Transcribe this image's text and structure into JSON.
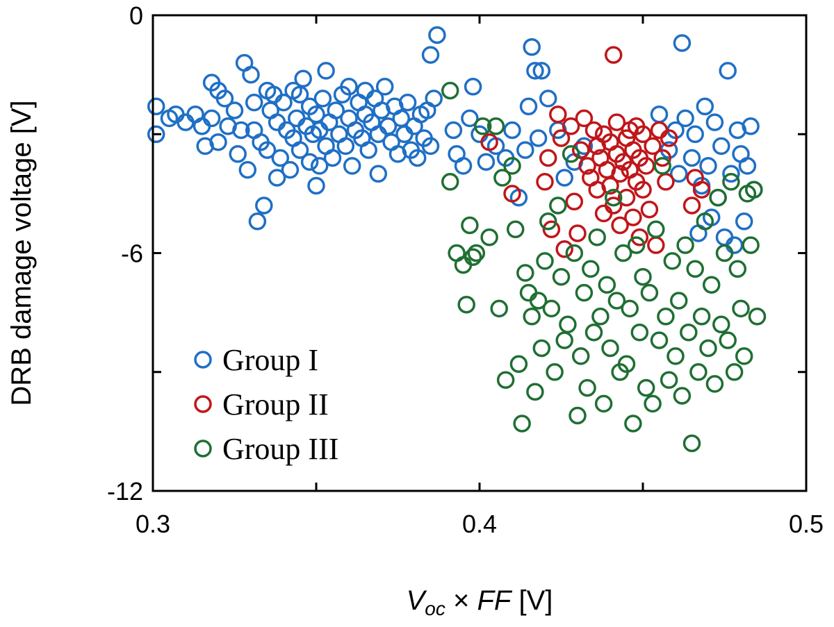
{
  "chart_data": {
    "type": "scatter",
    "title": "",
    "xlabel": {
      "parts": [
        {
          "text": "V",
          "italic": true
        },
        {
          "text": "oc",
          "italic": true,
          "sub": true
        },
        {
          "text": " × ",
          "italic": false
        },
        {
          "text": "FF",
          "italic": true
        },
        {
          "text": " [V]",
          "italic": false
        }
      ]
    },
    "ylabel": "DRB damage voltage [V]",
    "xlim": [
      0.3,
      0.5
    ],
    "ylim": [
      -12,
      0
    ],
    "xticks": [
      0.3,
      0.4,
      0.5
    ],
    "xtick_labels": [
      "0.3",
      "0.4",
      "0.5"
    ],
    "yticks": [
      0,
      -3,
      -6,
      -9,
      -12
    ],
    "ytick_labels": [
      "0",
      "",
      "-6",
      "",
      "-12"
    ],
    "grid": false,
    "legend_position": "bottom-left",
    "series": [
      {
        "name": "Group I",
        "color": "#1f6fc5",
        "points": [
          [
            0.301,
            -2.3
          ],
          [
            0.301,
            -3.0
          ],
          [
            0.305,
            -2.6
          ],
          [
            0.307,
            -2.5
          ],
          [
            0.31,
            -2.7
          ],
          [
            0.313,
            -2.5
          ],
          [
            0.315,
            -2.8
          ],
          [
            0.316,
            -3.3
          ],
          [
            0.318,
            -1.7
          ],
          [
            0.318,
            -2.6
          ],
          [
            0.32,
            -1.9
          ],
          [
            0.32,
            -3.2
          ],
          [
            0.322,
            -2.1
          ],
          [
            0.323,
            -2.8
          ],
          [
            0.325,
            -2.4
          ],
          [
            0.326,
            -3.5
          ],
          [
            0.327,
            -2.9
          ],
          [
            0.328,
            -1.2
          ],
          [
            0.329,
            -3.9
          ],
          [
            0.33,
            -1.5
          ],
          [
            0.331,
            -2.2
          ],
          [
            0.331,
            -2.9
          ],
          [
            0.332,
            -5.2
          ],
          [
            0.333,
            -3.2
          ],
          [
            0.334,
            -4.8
          ],
          [
            0.335,
            -1.9
          ],
          [
            0.335,
            -3.4
          ],
          [
            0.336,
            -2.4
          ],
          [
            0.337,
            -2.0
          ],
          [
            0.338,
            -4.1
          ],
          [
            0.338,
            -2.7
          ],
          [
            0.339,
            -3.6
          ],
          [
            0.34,
            -2.2
          ],
          [
            0.341,
            -2.9
          ],
          [
            0.342,
            -3.9
          ],
          [
            0.343,
            -1.9
          ],
          [
            0.343,
            -3.1
          ],
          [
            0.344,
            -2.6
          ],
          [
            0.345,
            -2.0
          ],
          [
            0.345,
            -3.4
          ],
          [
            0.346,
            -1.6
          ],
          [
            0.347,
            -2.8
          ],
          [
            0.348,
            -3.7
          ],
          [
            0.348,
            -2.3
          ],
          [
            0.349,
            -3.0
          ],
          [
            0.35,
            -2.5
          ],
          [
            0.35,
            -4.3
          ],
          [
            0.351,
            -2.9
          ],
          [
            0.351,
            -3.8
          ],
          [
            0.352,
            -2.1
          ],
          [
            0.353,
            -1.4
          ],
          [
            0.353,
            -3.3
          ],
          [
            0.354,
            -2.7
          ],
          [
            0.355,
            -3.6
          ],
          [
            0.356,
            -2.4
          ],
          [
            0.357,
            -3.0
          ],
          [
            0.358,
            -2.0
          ],
          [
            0.359,
            -3.3
          ],
          [
            0.36,
            -2.6
          ],
          [
            0.36,
            -1.8
          ],
          [
            0.361,
            -3.8
          ],
          [
            0.362,
            -2.9
          ],
          [
            0.363,
            -2.2
          ],
          [
            0.364,
            -3.1
          ],
          [
            0.365,
            -1.9
          ],
          [
            0.365,
            -2.5
          ],
          [
            0.366,
            -3.4
          ],
          [
            0.367,
            -2.7
          ],
          [
            0.368,
            -2.1
          ],
          [
            0.369,
            -3.0
          ],
          [
            0.369,
            -4.0
          ],
          [
            0.37,
            -2.4
          ],
          [
            0.371,
            -1.8
          ],
          [
            0.372,
            -2.8
          ],
          [
            0.373,
            -3.2
          ],
          [
            0.374,
            -2.3
          ],
          [
            0.375,
            -3.5
          ],
          [
            0.376,
            -2.6
          ],
          [
            0.377,
            -3.0
          ],
          [
            0.378,
            -2.2
          ],
          [
            0.379,
            -3.4
          ],
          [
            0.38,
            -2.8
          ],
          [
            0.381,
            -3.6
          ],
          [
            0.382,
            -2.5
          ],
          [
            0.383,
            -3.1
          ],
          [
            0.384,
            -2.4
          ],
          [
            0.385,
            -3.3
          ],
          [
            0.386,
            -2.1
          ],
          [
            0.387,
            -0.5
          ],
          [
            0.385,
            -1.0
          ],
          [
            0.392,
            -2.9
          ],
          [
            0.393,
            -3.5
          ],
          [
            0.395,
            -3.8
          ],
          [
            0.397,
            -2.6
          ],
          [
            0.398,
            -1.8
          ],
          [
            0.4,
            -3.0
          ],
          [
            0.402,
            -3.7
          ],
          [
            0.405,
            -3.3
          ],
          [
            0.408,
            -3.6
          ],
          [
            0.41,
            -2.9
          ],
          [
            0.412,
            -4.6
          ],
          [
            0.414,
            -3.4
          ],
          [
            0.415,
            -2.3
          ],
          [
            0.416,
            -0.8
          ],
          [
            0.417,
            -1.4
          ],
          [
            0.418,
            -3.1
          ],
          [
            0.419,
            -1.4
          ],
          [
            0.421,
            -2.1
          ],
          [
            0.424,
            -2.9
          ],
          [
            0.426,
            -4.1
          ],
          [
            0.429,
            -3.7
          ],
          [
            0.432,
            -3.3
          ],
          [
            0.455,
            -2.5
          ],
          [
            0.458,
            -3.4
          ],
          [
            0.46,
            -2.9
          ],
          [
            0.461,
            -4.0
          ],
          [
            0.462,
            -0.7
          ],
          [
            0.463,
            -2.6
          ],
          [
            0.465,
            -3.6
          ],
          [
            0.466,
            -3.0
          ],
          [
            0.467,
            -5.5
          ],
          [
            0.468,
            -4.3
          ],
          [
            0.469,
            -2.3
          ],
          [
            0.47,
            -3.8
          ],
          [
            0.471,
            -5.1
          ],
          [
            0.472,
            -2.7
          ],
          [
            0.473,
            -4.6
          ],
          [
            0.474,
            -3.3
          ],
          [
            0.475,
            -5.6
          ],
          [
            0.476,
            -1.4
          ],
          [
            0.477,
            -4.0
          ],
          [
            0.478,
            -5.8
          ],
          [
            0.479,
            -2.9
          ],
          [
            0.48,
            -3.5
          ],
          [
            0.481,
            -5.2
          ],
          [
            0.482,
            -3.8
          ],
          [
            0.483,
            -2.8
          ],
          [
            0.484,
            -4.4
          ]
        ]
      },
      {
        "name": "Group II",
        "color": "#c0161a",
        "points": [
          [
            0.403,
            -3.2
          ],
          [
            0.41,
            -4.5
          ],
          [
            0.42,
            -4.2
          ],
          [
            0.421,
            -3.6
          ],
          [
            0.422,
            -5.4
          ],
          [
            0.424,
            -2.5
          ],
          [
            0.425,
            -3.1
          ],
          [
            0.426,
            -5.9
          ],
          [
            0.428,
            -2.8
          ],
          [
            0.429,
            -4.7
          ],
          [
            0.43,
            -5.5
          ],
          [
            0.431,
            -3.4
          ],
          [
            0.432,
            -2.6
          ],
          [
            0.433,
            -3.8
          ],
          [
            0.434,
            -4.1
          ],
          [
            0.435,
            -2.9
          ],
          [
            0.436,
            -3.3
          ],
          [
            0.436,
            -4.4
          ],
          [
            0.437,
            -3.6
          ],
          [
            0.438,
            -5.0
          ],
          [
            0.438,
            -3.0
          ],
          [
            0.439,
            -3.9
          ],
          [
            0.44,
            -4.3
          ],
          [
            0.44,
            -3.2
          ],
          [
            0.441,
            -1.0
          ],
          [
            0.441,
            -4.8
          ],
          [
            0.442,
            -3.5
          ],
          [
            0.442,
            -2.7
          ],
          [
            0.443,
            -4.0
          ],
          [
            0.443,
            -5.3
          ],
          [
            0.444,
            -3.7
          ],
          [
            0.445,
            -3.1
          ],
          [
            0.445,
            -4.6
          ],
          [
            0.446,
            -2.9
          ],
          [
            0.446,
            -3.9
          ],
          [
            0.447,
            -5.1
          ],
          [
            0.447,
            -3.4
          ],
          [
            0.448,
            -4.2
          ],
          [
            0.448,
            -2.8
          ],
          [
            0.449,
            -3.6
          ],
          [
            0.449,
            -5.6
          ],
          [
            0.45,
            -4.4
          ],
          [
            0.45,
            -3.0
          ],
          [
            0.451,
            -3.8
          ],
          [
            0.452,
            -4.9
          ],
          [
            0.453,
            -3.3
          ],
          [
            0.454,
            -5.8
          ],
          [
            0.455,
            -2.9
          ],
          [
            0.456,
            -3.6
          ],
          [
            0.457,
            -4.2
          ],
          [
            0.458,
            -3.1
          ],
          [
            0.465,
            -4.8
          ],
          [
            0.466,
            -4.1
          ],
          [
            0.468,
            -4.4
          ]
        ]
      },
      {
        "name": "Group III",
        "color": "#1f6f33",
        "points": [
          [
            0.391,
            -1.9
          ],
          [
            0.391,
            -4.2
          ],
          [
            0.393,
            -6.0
          ],
          [
            0.395,
            -6.3
          ],
          [
            0.396,
            -7.3
          ],
          [
            0.397,
            -5.3
          ],
          [
            0.398,
            -6.1
          ],
          [
            0.399,
            -6.0
          ],
          [
            0.401,
            -2.8
          ],
          [
            0.403,
            -5.6
          ],
          [
            0.405,
            -2.8
          ],
          [
            0.406,
            -7.4
          ],
          [
            0.407,
            -4.1
          ],
          [
            0.408,
            -9.2
          ],
          [
            0.41,
            -3.8
          ],
          [
            0.411,
            -5.4
          ],
          [
            0.412,
            -8.8
          ],
          [
            0.413,
            -10.3
          ],
          [
            0.414,
            -6.5
          ],
          [
            0.415,
            -7.0
          ],
          [
            0.416,
            -7.6
          ],
          [
            0.417,
            -9.5
          ],
          [
            0.418,
            -7.2
          ],
          [
            0.419,
            -8.4
          ],
          [
            0.42,
            -6.2
          ],
          [
            0.421,
            -5.2
          ],
          [
            0.422,
            -7.4
          ],
          [
            0.423,
            -9.0
          ],
          [
            0.424,
            -4.8
          ],
          [
            0.425,
            -6.6
          ],
          [
            0.426,
            -8.2
          ],
          [
            0.427,
            -7.8
          ],
          [
            0.428,
            -3.5
          ],
          [
            0.429,
            -6.0
          ],
          [
            0.43,
            -10.1
          ],
          [
            0.431,
            -8.6
          ],
          [
            0.432,
            -7.0
          ],
          [
            0.433,
            -9.4
          ],
          [
            0.434,
            -6.4
          ],
          [
            0.435,
            -8.0
          ],
          [
            0.436,
            -5.6
          ],
          [
            0.437,
            -7.6
          ],
          [
            0.438,
            -9.8
          ],
          [
            0.439,
            -6.8
          ],
          [
            0.44,
            -8.4
          ],
          [
            0.441,
            -4.6
          ],
          [
            0.442,
            -7.2
          ],
          [
            0.443,
            -9.0
          ],
          [
            0.444,
            -6.0
          ],
          [
            0.445,
            -8.8
          ],
          [
            0.446,
            -7.4
          ],
          [
            0.447,
            -10.3
          ],
          [
            0.448,
            -5.8
          ],
          [
            0.449,
            -8.0
          ],
          [
            0.45,
            -6.6
          ],
          [
            0.451,
            -9.4
          ],
          [
            0.452,
            -7.0
          ],
          [
            0.453,
            -9.8
          ],
          [
            0.454,
            -5.4
          ],
          [
            0.455,
            -8.2
          ],
          [
            0.456,
            -3.8
          ],
          [
            0.457,
            -7.6
          ],
          [
            0.458,
            -9.2
          ],
          [
            0.459,
            -6.2
          ],
          [
            0.46,
            -8.6
          ],
          [
            0.461,
            -7.2
          ],
          [
            0.462,
            -9.6
          ],
          [
            0.463,
            -5.8
          ],
          [
            0.464,
            -8.0
          ],
          [
            0.465,
            -10.8
          ],
          [
            0.466,
            -6.4
          ],
          [
            0.467,
            -9.0
          ],
          [
            0.468,
            -7.6
          ],
          [
            0.469,
            -5.2
          ],
          [
            0.47,
            -8.4
          ],
          [
            0.471,
            -6.8
          ],
          [
            0.472,
            -9.3
          ],
          [
            0.473,
            -4.6
          ],
          [
            0.474,
            -7.8
          ],
          [
            0.475,
            -6.0
          ],
          [
            0.476,
            -8.2
          ],
          [
            0.477,
            -4.2
          ],
          [
            0.478,
            -9.0
          ],
          [
            0.479,
            -6.4
          ],
          [
            0.48,
            -7.4
          ],
          [
            0.481,
            -8.6
          ],
          [
            0.482,
            -4.5
          ],
          [
            0.483,
            -5.8
          ],
          [
            0.484,
            -4.4
          ],
          [
            0.485,
            -7.6
          ]
        ]
      }
    ]
  }
}
